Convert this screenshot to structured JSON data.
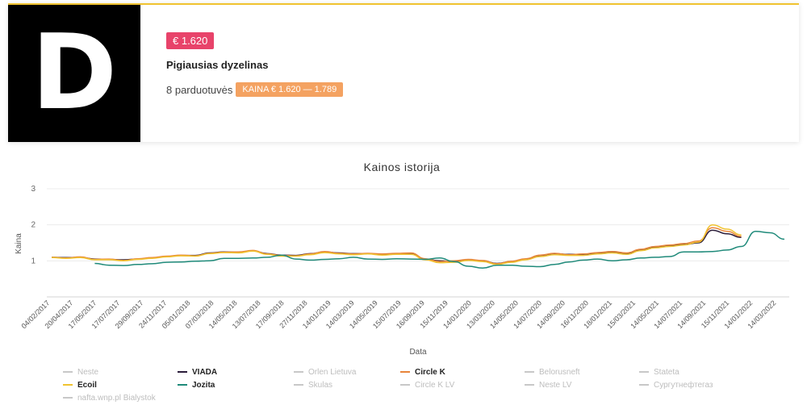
{
  "card": {
    "logo_letter": "D",
    "price": "€ 1.620",
    "product_name": "Pigiausias dyzelinas",
    "stores": "8 parduotuvės",
    "price_range": "KAINA € 1.620 — 1.789"
  },
  "colors": {
    "price_badge": "#e8436a",
    "range_badge": "#f4a261",
    "card_top_border": "#f0c330"
  },
  "chart_data": {
    "type": "line",
    "title": "Kainos istorija",
    "xlabel": "Data",
    "ylabel": "Kaina",
    "ylim": [
      0,
      3
    ],
    "yticks": [
      1,
      2,
      3
    ],
    "grid": true,
    "legend_position": "bottom",
    "x_tick_labels": [
      "04/02/2017",
      "20/04/2017",
      "17/05/2017",
      "17/07/2017",
      "29/09/2017",
      "24/11/2017",
      "05/01/2018",
      "07/03/2018",
      "14/05/2018",
      "13/07/2018",
      "17/09/2018",
      "27/11/2018",
      "14/01/2019",
      "14/03/2019",
      "14/05/2019",
      "15/07/2019",
      "16/09/2019",
      "15/11/2019",
      "14/01/2020",
      "13/03/2020",
      "14/05/2020",
      "14/07/2020",
      "14/09/2020",
      "16/11/2020",
      "18/01/2021",
      "15/03/2021",
      "14/05/2021",
      "14/07/2021",
      "14/09/2021",
      "15/11/2021",
      "14/01/2022",
      "14/03/2022"
    ],
    "legend": [
      {
        "name": "Neste",
        "color": "#c8c8c8",
        "bold": false
      },
      {
        "name": "VIADA",
        "color": "#2b1d3a",
        "bold": true
      },
      {
        "name": "Orlen Lietuva",
        "color": "#c8c8c8",
        "bold": false
      },
      {
        "name": "Circle K",
        "color": "#e8853a",
        "bold": true
      },
      {
        "name": "Belorusneft",
        "color": "#c8c8c8",
        "bold": false
      },
      {
        "name": "Stateta",
        "color": "#c8c8c8",
        "bold": false
      },
      {
        "name": "Ecoil",
        "color": "#f0c330",
        "bold": true
      },
      {
        "name": "Jozita",
        "color": "#1f8a7a",
        "bold": true
      },
      {
        "name": "Skulas",
        "color": "#c8c8c8",
        "bold": false
      },
      {
        "name": "Circle K LV",
        "color": "#c8c8c8",
        "bold": false
      },
      {
        "name": "Neste LV",
        "color": "#c8c8c8",
        "bold": false
      },
      {
        "name": "Сургутнефтегаз",
        "color": "#c8c8c8",
        "bold": false
      },
      {
        "name": "nafta.wnp.pl Bialystok",
        "color": "#c8c8c8",
        "bold": false
      }
    ],
    "series": [
      {
        "name": "VIADA",
        "color": "#2b1d3a",
        "start": 0,
        "values": [
          1.1,
          1.09,
          1.1,
          1.05,
          1.04,
          1.03,
          1.05,
          1.08,
          1.12,
          1.15,
          1.15,
          1.22,
          1.25,
          1.24,
          1.28,
          1.2,
          1.16,
          1.15,
          1.2,
          1.25,
          1.22,
          1.2,
          1.2,
          1.18,
          1.2,
          1.2,
          1.05,
          1.0,
          0.98,
          1.03,
          1.0,
          0.93,
          0.98,
          1.05,
          1.15,
          1.2,
          1.18,
          1.18,
          1.22,
          1.25,
          1.2,
          1.3,
          1.38,
          1.42,
          1.45,
          1.5,
          1.85,
          1.75,
          1.65
        ]
      },
      {
        "name": "Circle K",
        "color": "#e8853a",
        "start": 0,
        "values": [
          1.1,
          1.08,
          1.11,
          1.04,
          1.05,
          1.01,
          1.06,
          1.09,
          1.13,
          1.16,
          1.14,
          1.21,
          1.24,
          1.25,
          1.29,
          1.19,
          1.15,
          1.14,
          1.19,
          1.26,
          1.21,
          1.19,
          1.21,
          1.19,
          1.21,
          1.22,
          1.06,
          0.98,
          1.0,
          1.04,
          1.01,
          0.92,
          0.99,
          1.06,
          1.16,
          1.21,
          1.17,
          1.19,
          1.23,
          1.26,
          1.22,
          1.32,
          1.4,
          1.44,
          1.48,
          1.55,
          1.92,
          1.82,
          1.68
        ]
      },
      {
        "name": "Ecoil",
        "color": "#f0c330",
        "start": 0,
        "values": [
          1.09,
          1.07,
          1.09,
          1.03,
          1.03,
          1.0,
          1.04,
          1.07,
          1.11,
          1.14,
          1.13,
          1.2,
          1.23,
          1.22,
          1.27,
          1.18,
          1.13,
          1.13,
          1.17,
          1.23,
          1.19,
          1.17,
          1.19,
          1.16,
          1.18,
          1.18,
          1.03,
          0.95,
          0.96,
          1.01,
          0.98,
          0.9,
          0.96,
          1.03,
          1.12,
          1.17,
          1.15,
          1.15,
          1.19,
          1.22,
          1.18,
          1.28,
          1.36,
          1.4,
          1.44,
          1.52,
          2.0,
          1.88,
          1.72
        ]
      },
      {
        "name": "Jozita",
        "color": "#1f8a7a",
        "start": 3,
        "values": [
          0.93,
          0.88,
          0.87,
          0.9,
          0.92,
          0.96,
          0.97,
          0.99,
          1.0,
          1.07,
          1.07,
          1.08,
          1.1,
          1.16,
          1.05,
          1.02,
          1.04,
          1.06,
          1.1,
          1.05,
          1.04,
          1.06,
          1.05,
          1.04,
          1.08,
          0.98,
          0.85,
          0.8,
          0.88,
          0.88,
          0.85,
          0.84,
          0.9,
          0.97,
          1.02,
          1.05,
          1.0,
          1.03,
          1.08,
          1.1,
          1.12,
          1.25,
          1.25,
          1.26,
          1.3,
          1.4,
          1.82,
          1.78,
          1.6
        ]
      }
    ]
  }
}
